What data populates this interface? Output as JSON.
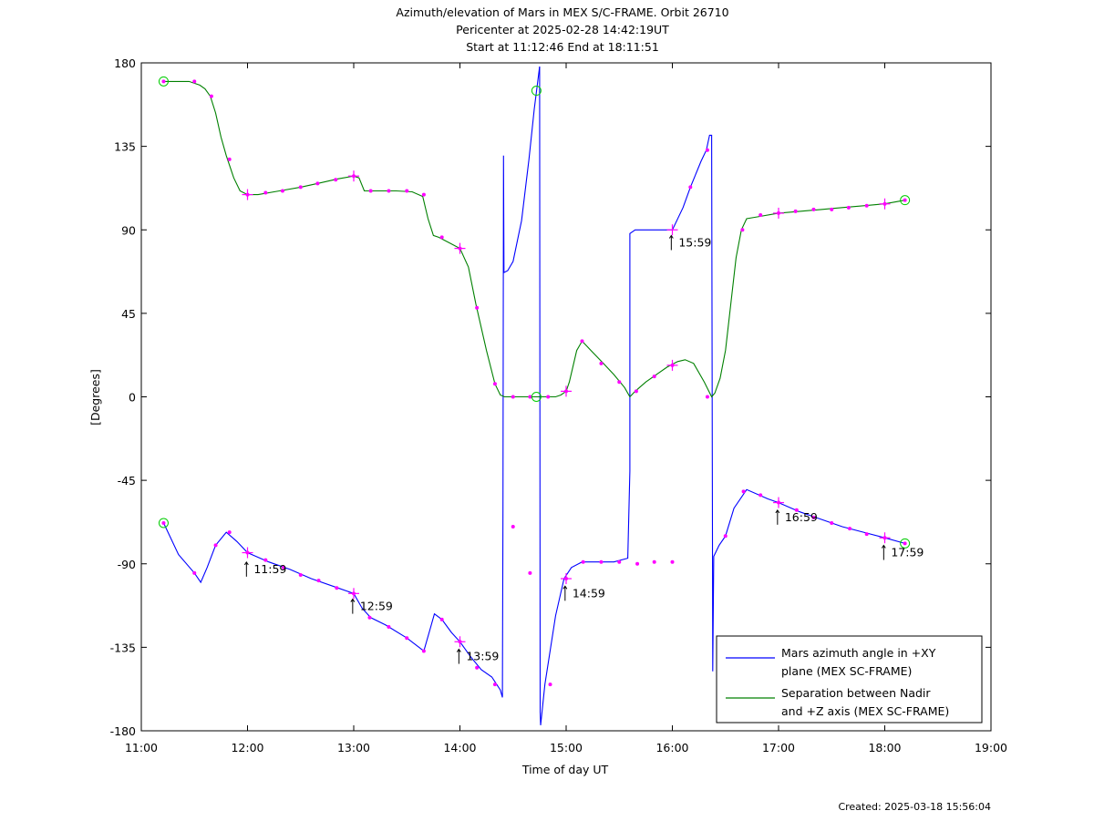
{
  "chart_data": {
    "type": "line",
    "title_lines": [
      "Azimuth/elevation of Mars in MEX S/C-FRAME.  Orbit 26710",
      "Pericenter at 2025-02-28 14:42:19UT",
      "Start at 11:12:46 End at 18:11:51"
    ],
    "xlabel": "Time of day UT",
    "ylabel": "[Degrees]",
    "xlim": [
      11.0,
      19.0
    ],
    "ylim": [
      -180,
      180
    ],
    "x_ticks": [
      11,
      12,
      13,
      14,
      15,
      16,
      17,
      18,
      19
    ],
    "x_tick_labels": [
      "11:00",
      "12:00",
      "13:00",
      "14:00",
      "15:00",
      "16:00",
      "17:00",
      "18:00",
      "19:00"
    ],
    "y_ticks": [
      180,
      135,
      90,
      45,
      0,
      -45,
      -90,
      -135,
      -180
    ],
    "y_tick_labels": [
      "180",
      "135",
      "90",
      "45",
      "0",
      "-45",
      "-90",
      "-135",
      "-180"
    ],
    "grid": false,
    "legend_position": "bottom-right",
    "colors": {
      "azimuth": "#0000ff",
      "separation": "#008000",
      "markers": "#ff00ff",
      "endpoints": "#00cc00"
    },
    "series": [
      {
        "key": "azimuth",
        "name": "Mars azimuth angle in +XY\nplane (MEX SC-FRAME)",
        "legend_lines": [
          "Mars azimuth angle in +XY",
          "plane (MEX SC-FRAME)"
        ],
        "segments": [
          [
            [
              11.21,
              -68
            ],
            [
              11.35,
              -85
            ],
            [
              11.5,
              -95
            ],
            [
              11.56,
              -100
            ],
            [
              11.62,
              -92
            ],
            [
              11.7,
              -80
            ],
            [
              11.8,
              -73
            ],
            [
              11.9,
              -78
            ],
            [
              12.0,
              -84
            ],
            [
              12.2,
              -89
            ],
            [
              12.4,
              -93
            ],
            [
              12.6,
              -98
            ],
            [
              12.85,
              -103
            ],
            [
              13.0,
              -106
            ],
            [
              13.08,
              -114
            ],
            [
              13.16,
              -119
            ],
            [
              13.3,
              -123
            ],
            [
              13.5,
              -130
            ],
            [
              13.66,
              -137
            ],
            [
              13.72,
              -125
            ],
            [
              13.76,
              -117
            ],
            [
              13.83,
              -120
            ],
            [
              13.92,
              -127
            ],
            [
              14.0,
              -132
            ],
            [
              14.1,
              -140
            ],
            [
              14.2,
              -147
            ],
            [
              14.3,
              -151
            ],
            [
              14.38,
              -158
            ],
            [
              14.4,
              -162
            ],
            [
              14.405,
              -60
            ],
            [
              14.41,
              130
            ],
            [
              14.415,
              67
            ],
            [
              14.45,
              68
            ],
            [
              14.5,
              73
            ],
            [
              14.58,
              95
            ],
            [
              14.65,
              128
            ],
            [
              14.7,
              155
            ],
            [
              14.75,
              178
            ]
          ],
          [
            [
              14.75,
              178
            ],
            [
              14.755,
              -170
            ],
            [
              14.76,
              -177
            ],
            [
              14.8,
              -155
            ],
            [
              14.9,
              -118
            ],
            [
              14.98,
              -98
            ],
            [
              15.05,
              -92
            ],
            [
              15.15,
              -89
            ],
            [
              15.3,
              -89
            ],
            [
              15.45,
              -89
            ],
            [
              15.58,
              -87
            ],
            [
              15.6,
              -40
            ],
            [
              15.6,
              88
            ],
            [
              15.65,
              90
            ],
            [
              15.8,
              90
            ],
            [
              15.98,
              90
            ],
            [
              16.0,
              90
            ],
            [
              16.1,
              102
            ],
            [
              16.17,
              113
            ],
            [
              16.27,
              127
            ],
            [
              16.32,
              133
            ],
            [
              16.35,
              141
            ],
            [
              16.37,
              141
            ],
            [
              16.38,
              -148
            ],
            [
              16.39,
              -86
            ],
            [
              16.44,
              -80
            ],
            [
              16.5,
              -75
            ],
            [
              16.58,
              -60
            ],
            [
              16.7,
              -50
            ],
            [
              16.9,
              -55
            ],
            [
              17.0,
              -57
            ],
            [
              17.2,
              -62
            ],
            [
              17.4,
              -66
            ],
            [
              17.6,
              -70
            ],
            [
              17.8,
              -73
            ],
            [
              18.0,
              -76
            ],
            [
              18.19,
              -79
            ]
          ]
        ],
        "markers": [
          [
            11.21,
            -68
          ],
          [
            11.5,
            -95
          ],
          [
            11.7,
            -80
          ],
          [
            11.83,
            -73
          ],
          [
            12.0,
            -84
          ],
          [
            12.17,
            -88
          ],
          [
            12.34,
            -92
          ],
          [
            12.5,
            -96
          ],
          [
            12.67,
            -99
          ],
          [
            12.84,
            -103
          ],
          [
            13.0,
            -106
          ],
          [
            13.15,
            -119
          ],
          [
            13.33,
            -124
          ],
          [
            13.5,
            -130
          ],
          [
            13.66,
            -137
          ],
          [
            13.83,
            -120
          ],
          [
            14.0,
            -132
          ],
          [
            14.16,
            -146
          ],
          [
            14.33,
            -155
          ],
          [
            14.5,
            -70
          ],
          [
            14.66,
            -95
          ],
          [
            14.85,
            -155
          ],
          [
            15.0,
            -98
          ],
          [
            15.16,
            -89
          ],
          [
            15.33,
            -89
          ],
          [
            15.5,
            -89
          ],
          [
            15.67,
            -90
          ],
          [
            15.83,
            -89
          ],
          [
            16.0,
            -89
          ],
          [
            16.17,
            113
          ],
          [
            16.33,
            133
          ],
          [
            16.5,
            -75
          ],
          [
            16.67,
            -51
          ],
          [
            16.83,
            -53
          ],
          [
            17.0,
            -57
          ],
          [
            17.17,
            -61
          ],
          [
            17.33,
            -65
          ],
          [
            17.5,
            -68
          ],
          [
            17.67,
            -71
          ],
          [
            17.83,
            -74
          ],
          [
            18.0,
            -76
          ],
          [
            18.19,
            -79
          ]
        ],
        "crosses": [
          [
            12.0,
            -84
          ],
          [
            13.0,
            -106
          ],
          [
            14.0,
            -132
          ],
          [
            15.0,
            -98
          ],
          [
            16.0,
            90
          ],
          [
            17.0,
            -57
          ],
          [
            18.0,
            -76
          ]
        ],
        "endpoints": [
          [
            11.21,
            -68
          ],
          [
            18.19,
            -79
          ]
        ]
      },
      {
        "key": "separation",
        "name": "Separation between Nadir\nand +Z axis (MEX SC-FRAME)",
        "legend_lines": [
          "Separation between Nadir",
          "and +Z axis (MEX SC-FRAME)"
        ],
        "segments": [
          [
            [
              11.21,
              170
            ],
            [
              11.3,
              170
            ],
            [
              11.45,
              170
            ],
            [
              11.55,
              168
            ],
            [
              11.6,
              166
            ],
            [
              11.65,
              162
            ],
            [
              11.7,
              153
            ],
            [
              11.75,
              140
            ],
            [
              11.8,
              130
            ],
            [
              11.87,
              118
            ],
            [
              11.93,
              111
            ],
            [
              12.0,
              109
            ],
            [
              12.1,
              109
            ],
            [
              12.3,
              111
            ],
            [
              12.5,
              113
            ],
            [
              12.7,
              115.5
            ],
            [
              12.85,
              117.5
            ],
            [
              13.0,
              119
            ],
            [
              13.05,
              118
            ],
            [
              13.1,
              111
            ],
            [
              13.2,
              111
            ],
            [
              13.4,
              111
            ],
            [
              13.55,
              110.5
            ],
            [
              13.65,
              108
            ],
            [
              13.7,
              96
            ],
            [
              13.75,
              87
            ],
            [
              13.8,
              86
            ],
            [
              13.9,
              83
            ],
            [
              14.0,
              80
            ],
            [
              14.08,
              70
            ],
            [
              14.15,
              50
            ],
            [
              14.25,
              25
            ],
            [
              14.33,
              7
            ],
            [
              14.38,
              1
            ],
            [
              14.42,
              0
            ],
            [
              14.5,
              0
            ],
            [
              14.6,
              0
            ],
            [
              14.7,
              0
            ],
            [
              14.8,
              0
            ],
            [
              14.9,
              0
            ],
            [
              14.95,
              1
            ],
            [
              15.0,
              3
            ],
            [
              15.03,
              8
            ],
            [
              15.1,
              25
            ],
            [
              15.15,
              30
            ],
            [
              15.25,
              24
            ],
            [
              15.35,
              18
            ],
            [
              15.45,
              12
            ],
            [
              15.55,
              5
            ],
            [
              15.6,
              0
            ],
            [
              15.65,
              3
            ],
            [
              15.75,
              8
            ],
            [
              15.85,
              12
            ],
            [
              15.95,
              16
            ],
            [
              16.05,
              19
            ],
            [
              16.12,
              20
            ],
            [
              16.2,
              18
            ],
            [
              16.3,
              8
            ],
            [
              16.37,
              0
            ],
            [
              16.4,
              2
            ],
            [
              16.45,
              10
            ],
            [
              16.5,
              25
            ],
            [
              16.55,
              50
            ],
            [
              16.6,
              75
            ],
            [
              16.65,
              90
            ],
            [
              16.7,
              96
            ],
            [
              16.8,
              97
            ],
            [
              17.0,
              99
            ],
            [
              17.2,
              100
            ],
            [
              17.4,
              101
            ],
            [
              17.6,
              102
            ],
            [
              17.8,
              103
            ],
            [
              18.0,
              104
            ],
            [
              18.19,
              106
            ]
          ]
        ],
        "markers": [
          [
            11.21,
            170
          ],
          [
            11.5,
            170
          ],
          [
            11.66,
            162
          ],
          [
            11.83,
            128
          ],
          [
            12.0,
            109
          ],
          [
            12.17,
            110
          ],
          [
            12.33,
            111
          ],
          [
            12.5,
            113
          ],
          [
            12.66,
            115
          ],
          [
            12.83,
            117
          ],
          [
            13.0,
            119
          ],
          [
            13.16,
            111
          ],
          [
            13.33,
            111
          ],
          [
            13.5,
            111
          ],
          [
            13.66,
            109
          ],
          [
            13.83,
            86
          ],
          [
            14.0,
            80
          ],
          [
            14.16,
            48
          ],
          [
            14.33,
            7
          ],
          [
            14.5,
            0
          ],
          [
            14.66,
            0
          ],
          [
            14.83,
            0
          ],
          [
            15.0,
            3
          ],
          [
            15.15,
            30
          ],
          [
            15.33,
            18
          ],
          [
            15.5,
            8
          ],
          [
            15.66,
            3
          ],
          [
            15.83,
            11
          ],
          [
            16.0,
            17
          ],
          [
            16.33,
            0
          ],
          [
            16.66,
            90
          ],
          [
            16.83,
            98
          ],
          [
            17.0,
            99
          ],
          [
            17.16,
            100
          ],
          [
            17.33,
            101
          ],
          [
            17.5,
            101
          ],
          [
            17.66,
            102
          ],
          [
            17.83,
            103
          ],
          [
            18.0,
            104
          ],
          [
            18.19,
            106
          ]
        ],
        "crosses": [
          [
            12.0,
            109
          ],
          [
            13.0,
            119
          ],
          [
            14.0,
            80
          ],
          [
            15.0,
            3
          ],
          [
            16.0,
            17
          ],
          [
            17.0,
            99
          ],
          [
            18.0,
            104
          ]
        ],
        "endpoints": [
          [
            11.21,
            170
          ],
          [
            14.72,
            165
          ],
          [
            14.72,
            0
          ],
          [
            18.19,
            106
          ]
        ]
      }
    ],
    "annotations": [
      {
        "text": "11:59",
        "x": 11.99,
        "y": -93
      },
      {
        "text": "12:59",
        "x": 12.99,
        "y": -113
      },
      {
        "text": "13:59",
        "x": 13.99,
        "y": -140
      },
      {
        "text": "14:59",
        "x": 14.99,
        "y": -106
      },
      {
        "text": "15:59",
        "x": 15.99,
        "y": 83
      },
      {
        "text": "16:59",
        "x": 16.99,
        "y": -65
      },
      {
        "text": "17:59",
        "x": 17.99,
        "y": -84
      }
    ]
  },
  "footer": {
    "created": "Created: 2025-03-18 15:56:04"
  }
}
